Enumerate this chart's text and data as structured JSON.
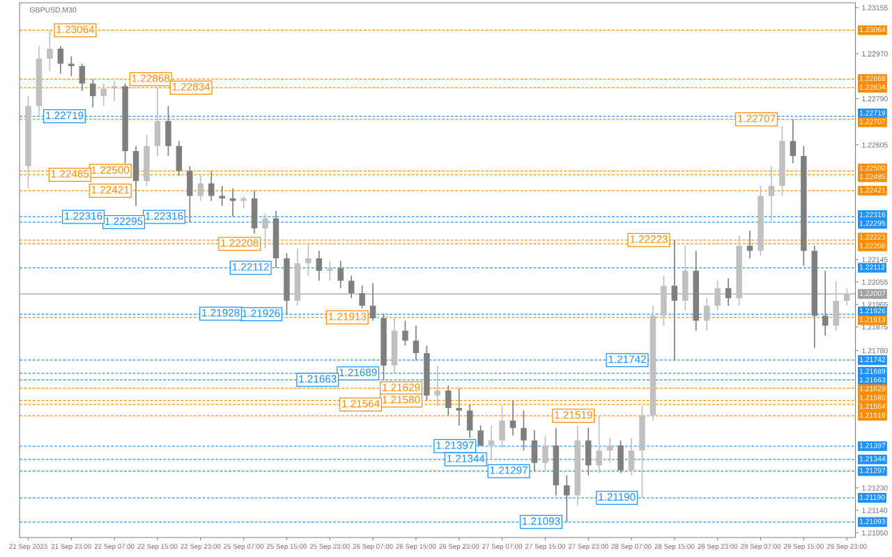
{
  "chart_data": {
    "type": "candlestick",
    "title": "GBPUSD,M30",
    "categories": [
      "21 Sep 2023",
      null,
      null,
      null,
      "21 Sep 23:00",
      null,
      null,
      null,
      "22 Sep 07:00",
      null,
      null,
      null,
      "22 Sep 15:00",
      null,
      null,
      null,
      "22 Sep 23:00",
      null,
      null,
      null,
      "25 Sep 07:00",
      null,
      null,
      null,
      "25 Sep 15:00",
      null,
      null,
      null,
      "25 Sep 23:00",
      null,
      null,
      null,
      "26 Sep 07:00",
      null,
      null,
      null,
      "26 Sep 15:00",
      null,
      null,
      null,
      "26 Sep 23:00",
      null,
      null,
      null,
      "27 Sep 07:00",
      null,
      null,
      null,
      "27 Sep 15:00",
      null,
      null,
      null,
      "27 Sep 23:00",
      null,
      null,
      null,
      "28 Sep 07:00",
      null,
      null,
      null,
      "28 Sep 15:00",
      null,
      null,
      null,
      "28 Sep 23:00",
      null,
      null,
      null,
      "29 Sep 07:00",
      null,
      null,
      null,
      "29 Sep 15:00",
      null,
      null,
      null,
      "29 Sep 23:00"
    ],
    "ohlc": [
      [
        1.2252,
        1.228,
        1.2243,
        1.2276
      ],
      [
        1.2276,
        1.23,
        1.2272,
        1.2295
      ],
      [
        1.2295,
        1.23064,
        1.229,
        1.2299
      ],
      [
        1.2299,
        1.23,
        1.2289,
        1.2293
      ],
      [
        1.2293,
        1.2296,
        1.2288,
        1.2292
      ],
      [
        1.2292,
        1.2293,
        1.2282,
        1.2285
      ],
      [
        1.2285,
        1.22868,
        1.22755,
        1.228
      ],
      [
        1.228,
        1.2285,
        1.2276,
        1.2283
      ],
      [
        1.2283,
        1.2286,
        1.2278,
        1.2284
      ],
      [
        1.2284,
        1.2285,
        1.2253,
        1.2258
      ],
      [
        1.2258,
        1.226,
        1.2236,
        1.2246
      ],
      [
        1.2246,
        1.22645,
        1.2244,
        1.226
      ],
      [
        1.226,
        1.22834,
        1.2256,
        1.227
      ],
      [
        1.227,
        1.2276,
        1.2256,
        1.226
      ],
      [
        1.226,
        1.2262,
        1.2248,
        1.225
      ],
      [
        1.225,
        1.2252,
        1.22295,
        1.224
      ],
      [
        1.224,
        1.22485,
        1.2238,
        1.2245
      ],
      [
        1.2245,
        1.225,
        1.2238,
        1.224
      ],
      [
        1.224,
        1.2244,
        1.2236,
        1.2239
      ],
      [
        1.2239,
        1.2243,
        1.22316,
        1.2238
      ],
      [
        1.2238,
        1.224,
        1.2235,
        1.2239
      ],
      [
        1.2239,
        1.22421,
        1.2225,
        1.2227
      ],
      [
        1.2227,
        1.2233,
        1.2219,
        1.2231
      ],
      [
        1.2231,
        1.2234,
        1.22112,
        1.2215
      ],
      [
        1.2215,
        1.2217,
        1.21926,
        1.2198
      ],
      [
        1.2198,
        1.2219,
        1.2196,
        1.2213
      ],
      [
        1.2213,
        1.22208,
        1.2208,
        1.2215
      ],
      [
        1.2215,
        1.2218,
        1.2206,
        1.221
      ],
      [
        1.221,
        1.2214,
        1.2206,
        1.2211
      ],
      [
        1.2211,
        1.2214,
        1.2203,
        1.2206
      ],
      [
        1.2206,
        1.2208,
        1.2199,
        1.2201
      ],
      [
        1.2201,
        1.2204,
        1.2195,
        1.2196
      ],
      [
        1.2196,
        1.2205,
        1.219,
        1.2191
      ],
      [
        1.2191,
        1.21928,
        1.21663,
        1.2172
      ],
      [
        1.2172,
        1.21913,
        1.21689,
        1.2186
      ],
      [
        1.2186,
        1.219,
        1.218,
        1.2182
      ],
      [
        1.2182,
        1.2188,
        1.2174,
        1.2177
      ],
      [
        1.2177,
        1.218,
        1.2158,
        1.216
      ],
      [
        1.216,
        1.2172,
        1.2156,
        1.2162
      ],
      [
        1.2162,
        1.2164,
        1.2152,
        1.2155
      ],
      [
        1.2155,
        1.21629,
        1.2148,
        1.2154
      ],
      [
        1.2154,
        1.21564,
        1.2143,
        1.2146
      ],
      [
        1.2146,
        1.2148,
        1.21397,
        1.214
      ],
      [
        1.214,
        1.2148,
        1.21344,
        1.2142
      ],
      [
        1.2142,
        1.2156,
        1.2139,
        1.215
      ],
      [
        1.215,
        1.2158,
        1.2144,
        1.2147
      ],
      [
        1.2147,
        1.2154,
        1.2138,
        1.2142
      ],
      [
        1.2142,
        1.2146,
        1.21297,
        1.2133
      ],
      [
        1.2133,
        1.2144,
        1.213,
        1.214
      ],
      [
        1.214,
        1.2147,
        1.212,
        1.2124
      ],
      [
        1.2124,
        1.2128,
        1.21093,
        1.212
      ],
      [
        1.212,
        1.2148,
        1.2116,
        1.2142
      ],
      [
        1.2142,
        1.2147,
        1.2128,
        1.2132
      ],
      [
        1.2132,
        1.21519,
        1.2129,
        1.2138
      ],
      [
        1.2138,
        1.2143,
        1.2133,
        1.214
      ],
      [
        1.214,
        1.2142,
        1.2129,
        1.213
      ],
      [
        1.213,
        1.2143,
        1.2128,
        1.2138
      ],
      [
        1.2138,
        1.2156,
        1.2119,
        1.2152
      ],
      [
        1.2152,
        1.2196,
        1.215,
        1.2192
      ],
      [
        1.2192,
        1.2208,
        1.2188,
        1.2204
      ],
      [
        1.2204,
        1.22223,
        1.21742,
        1.2198
      ],
      [
        1.2198,
        1.222,
        1.2194,
        1.221
      ],
      [
        1.221,
        1.2218,
        1.2186,
        1.219
      ],
      [
        1.219,
        1.2199,
        1.2186,
        1.2196
      ],
      [
        1.2196,
        1.2206,
        1.2194,
        1.2203
      ],
      [
        1.2203,
        1.2207,
        1.2196,
        1.2199
      ],
      [
        1.2199,
        1.2224,
        1.2196,
        1.222
      ],
      [
        1.222,
        1.2226,
        1.2215,
        1.2218
      ],
      [
        1.2218,
        1.2244,
        1.2216,
        1.224
      ],
      [
        1.224,
        1.2252,
        1.223,
        1.2244
      ],
      [
        1.2244,
        1.2268,
        1.224,
        1.2262
      ],
      [
        1.2262,
        1.22707,
        1.2253,
        1.2256
      ],
      [
        1.2256,
        1.226,
        1.2212,
        1.2218
      ],
      [
        1.2218,
        1.222,
        1.2179,
        1.2192
      ],
      [
        1.2192,
        1.221,
        1.2184,
        1.2188
      ],
      [
        1.2188,
        1.2206,
        1.2186,
        1.2198
      ],
      [
        1.2198,
        1.2203,
        1.2196,
        1.22007
      ]
    ],
    "colors": [
      "#c0c0c0",
      "#c0c0c0",
      "#c0c0c0",
      "#7f7f7f",
      "#7f7f7f",
      "#7f7f7f",
      "#7f7f7f",
      "#c0c0c0",
      "#c0c0c0",
      "#7f7f7f",
      "#7f7f7f",
      "#c0c0c0",
      "#c0c0c0",
      "#7f7f7f",
      "#7f7f7f",
      "#7f7f7f",
      "#c0c0c0",
      "#7f7f7f",
      "#7f7f7f",
      "#7f7f7f",
      "#c0c0c0",
      "#7f7f7f",
      "#c0c0c0",
      "#7f7f7f",
      "#7f7f7f",
      "#c0c0c0",
      "#c0c0c0",
      "#7f7f7f",
      "#c0c0c0",
      "#7f7f7f",
      "#7f7f7f",
      "#7f7f7f",
      "#7f7f7f",
      "#7f7f7f",
      "#c0c0c0",
      "#7f7f7f",
      "#7f7f7f",
      "#7f7f7f",
      "#c0c0c0",
      "#7f7f7f",
      "#7f7f7f",
      "#7f7f7f",
      "#7f7f7f",
      "#c0c0c0",
      "#c0c0c0",
      "#7f7f7f",
      "#7f7f7f",
      "#7f7f7f",
      "#c0c0c0",
      "#7f7f7f",
      "#7f7f7f",
      "#c0c0c0",
      "#7f7f7f",
      "#c0c0c0",
      "#c0c0c0",
      "#7f7f7f",
      "#c0c0c0",
      "#c0c0c0",
      "#c0c0c0",
      "#c0c0c0",
      "#7f7f7f",
      "#c0c0c0",
      "#7f7f7f",
      "#c0c0c0",
      "#c0c0c0",
      "#7f7f7f",
      "#c0c0c0",
      "#7f7f7f",
      "#c0c0c0",
      "#c0c0c0",
      "#c0c0c0",
      "#7f7f7f",
      "#7f7f7f",
      "#7f7f7f",
      "#7f7f7f",
      "#c0c0c0",
      "#c0c0c0"
    ],
    "ylim": [
      1.21031,
      1.23174
    ],
    "yticks": [
      {
        "value": 1.2105,
        "label": "1.21050"
      },
      {
        "value": 1.2114,
        "label": "1.21140"
      },
      {
        "value": 1.2123,
        "label": "1.21230"
      },
      {
        "value": 1.2178,
        "label": "1.21780"
      },
      1.21875,
      1.21965,
      1.22055,
      1.22145,
      1.22605,
      {
        "value": 1.2279,
        "label": "1.22790"
      },
      {
        "value": 1.2297,
        "label": "1.22970"
      },
      1.23155
    ],
    "annotations": [
      {
        "text": "1.22316",
        "y": 1.22316
      },
      {
        "text": "1.21928",
        "y": 1.21928
      }
    ],
    "grid": false,
    "ref_lines": [
      {
        "axis": "y",
        "value": 1.23064,
        "label": "1.23064",
        "color": "#ff8c00",
        "line_style": "dashed"
      },
      {
        "axis": "y",
        "value": 1.22868,
        "label": "1.22868",
        "color": "#ff8c00",
        "line_style": "dashed"
      },
      {
        "axis": "y",
        "value": 1.22834,
        "label": "1.22834",
        "color": "#ff8c00",
        "line_style": "dashed"
      },
      {
        "axis": "y",
        "value": 1.22719,
        "label": "1.22719",
        "color": "#1e90ff",
        "line_style": "dashed"
      },
      {
        "axis": "y",
        "value": 1.22707,
        "label": "1.22707",
        "color": "#ff8c00",
        "line_style": "dashed"
      },
      {
        "axis": "y",
        "value": 1.225,
        "label": "1.22500",
        "color": "#ff8c00",
        "line_style": "dashed"
      },
      {
        "axis": "y",
        "value": 1.22485,
        "label": "1.22485",
        "color": "#ff8c00",
        "line_style": "dashed"
      },
      {
        "axis": "y",
        "value": 1.22421,
        "label": "1.22421",
        "color": "#ff8c00",
        "line_style": "dashed"
      },
      {
        "axis": "y",
        "value": 1.22316,
        "label": "1.22316",
        "color": "#1e90ff",
        "line_style": "dashed"
      },
      {
        "axis": "y",
        "value": 1.22295,
        "label": "1.22295",
        "color": "#1e90ff",
        "line_style": "dashed"
      },
      {
        "axis": "y",
        "value": 1.22223,
        "label": "1.22223",
        "color": "#ff8c00",
        "line_style": "dashed"
      },
      {
        "axis": "y",
        "value": 1.22208,
        "label": "1.22208",
        "color": "#ff8c00",
        "line_style": "dashed"
      },
      {
        "axis": "y",
        "value": 1.22112,
        "label": "1.22112",
        "color": "#1e90ff",
        "line_style": "dashed"
      },
      {
        "axis": "y",
        "value": 1.22007,
        "label": "1.22007",
        "color": "#a0a0a0",
        "line_style": "solid"
      },
      {
        "axis": "y",
        "value": 1.21926,
        "label": "1.21926",
        "color": "#1e90ff",
        "line_style": "dashed"
      },
      {
        "axis": "y",
        "value": 1.21913,
        "label": "1.21913",
        "color": "#ff8c00",
        "line_style": "dashed"
      },
      {
        "axis": "y",
        "value": 1.21742,
        "label": "1.21742",
        "color": "#1e90ff",
        "line_style": "dashed"
      },
      {
        "axis": "y",
        "value": 1.21689,
        "label": "1.21689",
        "color": "#1e90ff",
        "line_style": "dashed"
      },
      {
        "axis": "y",
        "value": 1.21663,
        "label": "1.21663",
        "color": "#1e90ff",
        "line_style": "dashed"
      },
      {
        "axis": "y",
        "value": 1.21629,
        "label": "1.21629",
        "color": "#ff8c00",
        "line_style": "dashed"
      },
      {
        "axis": "y",
        "value": 1.2158,
        "label": "1.21580",
        "color": "#ff8c00",
        "line_style": "dashed"
      },
      {
        "axis": "y",
        "value": 1.21564,
        "label": "1.21564",
        "color": "#ff8c00",
        "line_style": "dashed"
      },
      {
        "axis": "y",
        "value": 1.21519,
        "label": "1.21519",
        "color": "#ff8c00",
        "line_style": "dashed"
      },
      {
        "axis": "y",
        "value": 1.21397,
        "label": "1.21397",
        "color": "#1e90ff",
        "line_style": "dashed"
      },
      {
        "axis": "y",
        "value": 1.21344,
        "label": "1.21344",
        "color": "#1e90ff",
        "line_style": "dashed"
      },
      {
        "axis": "y",
        "value": 1.21297,
        "label": "1.21297",
        "color": "#1e90ff",
        "line_style": "dashed"
      },
      {
        "axis": "y",
        "value": 1.2119,
        "label": "1.21190",
        "color": "#1e90ff",
        "line_style": "dashed"
      },
      {
        "axis": "y",
        "value": 1.21093,
        "label": "1.21093",
        "color": "#1e90ff",
        "line_style": "dashed"
      }
    ]
  }
}
